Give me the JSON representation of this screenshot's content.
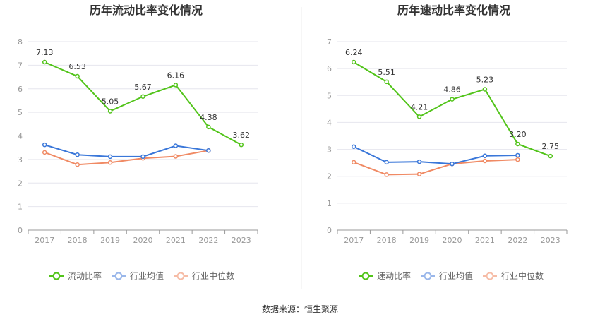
{
  "source_text": "数据来源：恒生聚源",
  "chart_data": [
    {
      "type": "line",
      "title": "历年流动比率变化情况",
      "categories": [
        "2017",
        "2018",
        "2019",
        "2020",
        "2021",
        "2022",
        "2023"
      ],
      "ylim": [
        0,
        8
      ],
      "yticks": [
        0,
        1,
        2,
        3,
        4,
        5,
        6,
        7,
        8
      ],
      "grid": true,
      "legend_position": "bottom",
      "series": [
        {
          "name": "流动比率",
          "color": "#52c41a",
          "values": [
            7.13,
            6.53,
            5.05,
            5.67,
            6.16,
            4.38,
            3.62
          ],
          "labels": [
            "7.13",
            "6.53",
            "5.05",
            "5.67",
            "6.16",
            "4.38",
            "3.62"
          ]
        },
        {
          "name": "行业均值",
          "color": "#3a77d9",
          "values": [
            3.62,
            3.2,
            3.12,
            3.12,
            3.58,
            3.38,
            null
          ]
        },
        {
          "name": "行业中位数",
          "color": "#f08a64",
          "values": [
            3.3,
            2.78,
            2.87,
            3.05,
            3.13,
            3.38,
            null
          ]
        }
      ]
    },
    {
      "type": "line",
      "title": "历年速动比率变化情况",
      "categories": [
        "2017",
        "2018",
        "2019",
        "2020",
        "2021",
        "2022",
        "2023"
      ],
      "ylim": [
        0,
        7
      ],
      "yticks": [
        0,
        1,
        2,
        3,
        4,
        5,
        6,
        7
      ],
      "grid": true,
      "legend_position": "bottom",
      "series": [
        {
          "name": "速动比率",
          "color": "#52c41a",
          "values": [
            6.24,
            5.51,
            4.21,
            4.86,
            5.23,
            3.2,
            2.75
          ],
          "labels": [
            "6.24",
            "5.51",
            "4.21",
            "4.86",
            "5.23",
            "3.20",
            "2.75"
          ]
        },
        {
          "name": "行业均值",
          "color": "#3a77d9",
          "values": [
            3.1,
            2.52,
            2.54,
            2.46,
            2.76,
            2.78,
            null
          ]
        },
        {
          "name": "行业中位数",
          "color": "#f08a64",
          "values": [
            2.52,
            2.06,
            2.08,
            2.46,
            2.57,
            2.62,
            null
          ]
        }
      ]
    }
  ]
}
